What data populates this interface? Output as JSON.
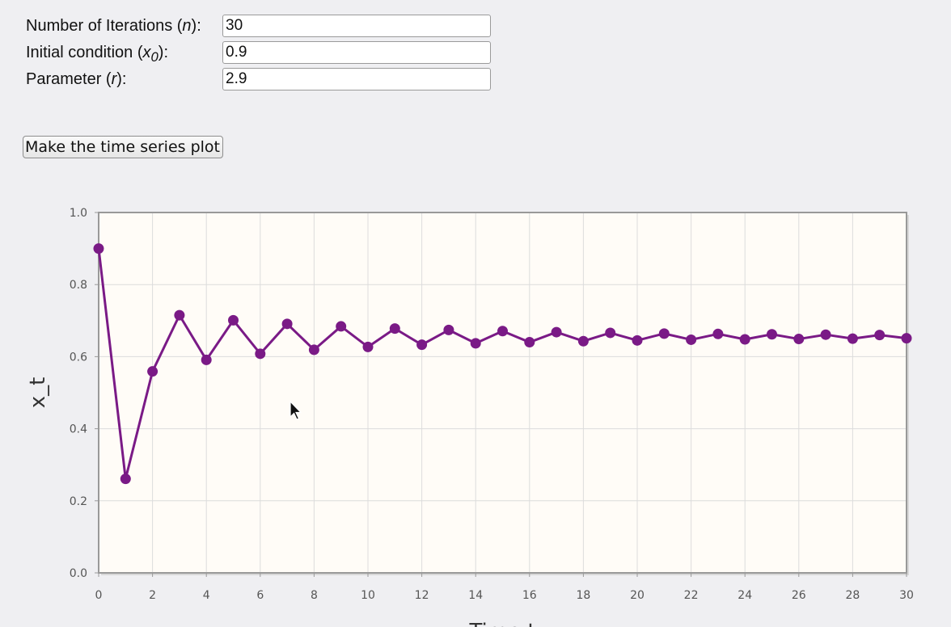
{
  "form": {
    "iterations": {
      "label_prefix": "Number of Iterations (",
      "label_var": "n",
      "label_suffix": "):",
      "value": "30"
    },
    "initial": {
      "label_prefix": "Initial condition (",
      "label_var": "x",
      "label_sub": "0",
      "label_suffix": "):",
      "value": "0.9"
    },
    "parameter": {
      "label_prefix": "Parameter (",
      "label_var": "r",
      "label_suffix": "):",
      "value": "2.9"
    }
  },
  "button": {
    "label": "Make the time series plot"
  },
  "chart_data": {
    "type": "line",
    "xlabel": "Time t",
    "ylabel": "x_t",
    "xlim": [
      0,
      30
    ],
    "ylim": [
      0,
      1.0
    ],
    "x_ticks": [
      "0",
      "2",
      "4",
      "6",
      "8",
      "10",
      "12",
      "14",
      "16",
      "18",
      "20",
      "22",
      "24",
      "26",
      "28",
      "30"
    ],
    "y_ticks": [
      "0.0",
      "0.2",
      "0.4",
      "0.6",
      "0.8",
      "1.0"
    ],
    "grid": true,
    "series": [
      {
        "color": "#7a1a86",
        "x": [
          0,
          1,
          2,
          3,
          4,
          5,
          6,
          7,
          8,
          9,
          10,
          11,
          12,
          13,
          14,
          15,
          16,
          17,
          18,
          19,
          20,
          21,
          22,
          23,
          24,
          25,
          26,
          27,
          28,
          29,
          30
        ],
        "values": [
          0.9,
          0.261,
          0.559,
          0.715,
          0.591,
          0.701,
          0.608,
          0.691,
          0.619,
          0.684,
          0.627,
          0.678,
          0.633,
          0.674,
          0.637,
          0.671,
          0.64,
          0.668,
          0.643,
          0.666,
          0.645,
          0.664,
          0.647,
          0.663,
          0.648,
          0.662,
          0.649,
          0.661,
          0.65,
          0.66,
          0.651
        ]
      }
    ]
  }
}
